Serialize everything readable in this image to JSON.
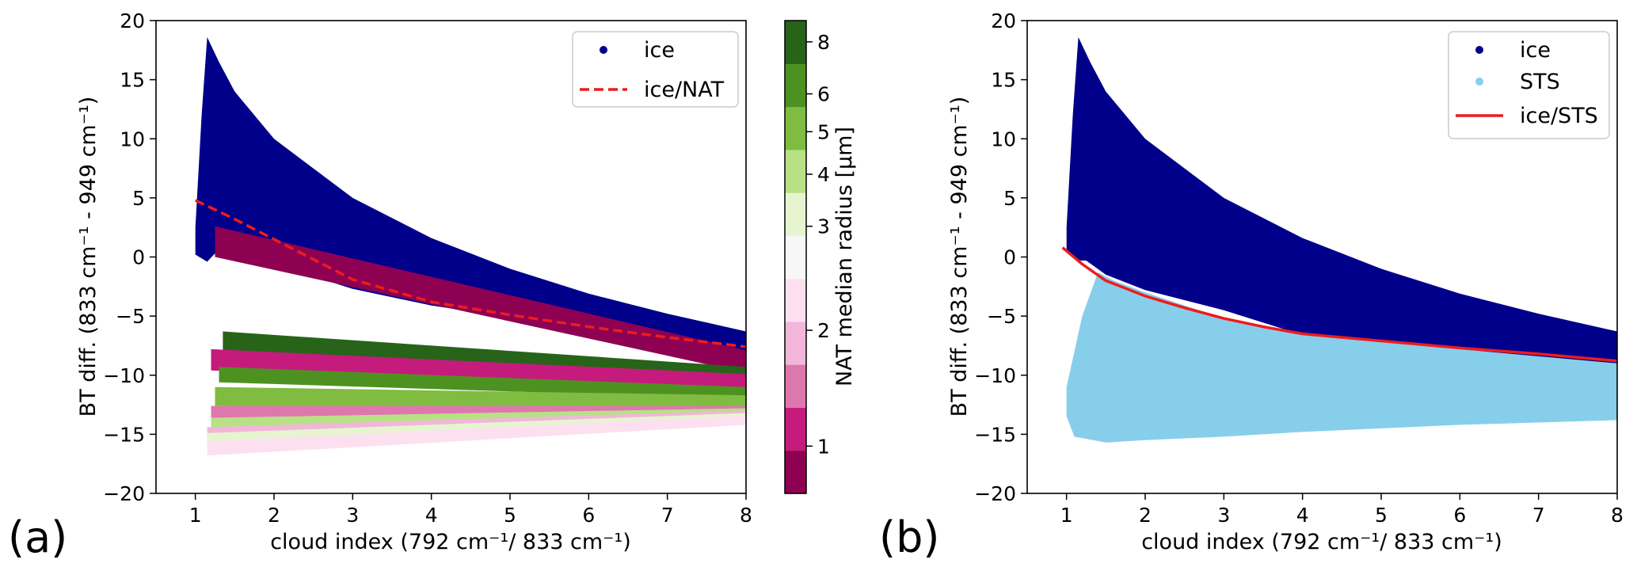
{
  "chart_data": [
    {
      "type": "scatter",
      "panel_label": "(a)",
      "xlabel": "cloud index (792 cm⁻¹/ 833 cm⁻¹)",
      "ylabel": "BT diff. (833 cm⁻¹ - 949 cm⁻¹)",
      "xlim": [
        0.5,
        8
      ],
      "ylim": [
        -20,
        20
      ],
      "xticks": [
        1,
        2,
        3,
        4,
        5,
        6,
        7,
        8
      ],
      "yticks": [
        -20,
        -15,
        -10,
        -5,
        0,
        5,
        10,
        15,
        20
      ],
      "grid": false,
      "legend_position": "top-right",
      "series": [
        {
          "name": "ice",
          "kind": "scatter",
          "color": "#00008b",
          "upper": [
            [
              1.0,
              2.5
            ],
            [
              1.08,
              12.0
            ],
            [
              1.15,
              18.6
            ],
            [
              1.3,
              16.5
            ],
            [
              1.5,
              14.0
            ],
            [
              2.0,
              10.0
            ],
            [
              3.0,
              5.0
            ],
            [
              4.0,
              1.6
            ],
            [
              5.0,
              -1.0
            ],
            [
              6.0,
              -3.1
            ],
            [
              7.0,
              -4.8
            ],
            [
              8.0,
              -6.3
            ]
          ],
          "lower": [
            [
              8.0,
              -8.0
            ],
            [
              7.0,
              -7.0
            ],
            [
              6.0,
              -6.1
            ],
            [
              5.0,
              -5.1
            ],
            [
              4.0,
              -4.1
            ],
            [
              3.0,
              -2.7
            ],
            [
              2.0,
              -0.6
            ],
            [
              1.5,
              0.5
            ],
            [
              1.25,
              0.3
            ],
            [
              1.15,
              -0.4
            ],
            [
              1.0,
              0.2
            ]
          ]
        },
        {
          "name": "ice/NAT",
          "kind": "line",
          "style": "dashed",
          "color": "#ee1c1c",
          "x": [
            1.0,
            1.5,
            2.0,
            2.5,
            3.0,
            4.0,
            5.0,
            6.0,
            7.0,
            8.0
          ],
          "y": [
            4.8,
            3.2,
            1.5,
            -0.2,
            -1.9,
            -3.8,
            -4.9,
            -5.9,
            -6.8,
            -7.6
          ]
        },
        {
          "name": "",
          "kind": "nat-bands",
          "bands": [
            {
              "radius": 0.6,
              "color": "#8e0152",
              "x0": 1.25,
              "x1": 8.0,
              "top0": 2.6,
              "bot0": 0.0,
              "top1": -7.9,
              "bot1": -9.8
            },
            {
              "radius": 8.0,
              "color": "#276419",
              "x0": 1.35,
              "x1": 8.0,
              "top0": -6.3,
              "bot0": -8.0,
              "top1": -9.3,
              "bot1": -10.9
            },
            {
              "radius": 1.0,
              "color": "#c51b7d",
              "x0": 1.2,
              "x1": 8.0,
              "top0": -7.8,
              "bot0": -9.6,
              "top1": -9.9,
              "bot1": -11.4
            },
            {
              "radius": 6.0,
              "color": "#4d9221",
              "x0": 1.3,
              "x1": 8.0,
              "top0": -9.3,
              "bot0": -10.6,
              "top1": -11.0,
              "bot1": -12.0
            },
            {
              "radius": 5.0,
              "color": "#7fbc41",
              "x0": 1.25,
              "x1": 8.0,
              "top0": -11.0,
              "bot0": -12.6,
              "top1": -11.7,
              "bot1": -12.9
            },
            {
              "radius": 1.5,
              "color": "#de77ae",
              "x0": 1.2,
              "x1": 8.0,
              "top0": -12.6,
              "bot0": -14.2,
              "top1": -12.6,
              "bot1": -13.4
            },
            {
              "radius": 4.0,
              "color": "#b8e186",
              "x0": 1.2,
              "x1": 8.0,
              "top0": -13.6,
              "bot0": -14.8,
              "top1": -12.8,
              "bot1": -13.6
            },
            {
              "radius": 2.0,
              "color": "#f1b6da",
              "x0": 1.15,
              "x1": 8.0,
              "top0": -14.4,
              "bot0": -15.5,
              "top1": -13.0,
              "bot1": -13.8
            },
            {
              "radius": 3.5,
              "color": "#e6f5d0",
              "x0": 1.15,
              "x1": 8.0,
              "top0": -14.9,
              "bot0": -16.0,
              "top1": -13.2,
              "bot1": -14.0
            },
            {
              "radius": 2.5,
              "color": "#fde0ef",
              "x0": 1.15,
              "x1": 8.0,
              "top0": -15.6,
              "bot0": -16.8,
              "top1": -13.4,
              "bot1": -14.2
            }
          ]
        }
      ],
      "colorbar": {
        "label": "NAT median radius [μm]",
        "ticks": [
          {
            "label": "1",
            "frac": 0.1
          },
          {
            "label": "2",
            "frac": 0.345
          },
          {
            "label": "3",
            "frac": 0.565
          },
          {
            "label": "4",
            "frac": 0.675
          },
          {
            "label": "5",
            "frac": 0.765
          },
          {
            "label": "6",
            "frac": 0.845
          },
          {
            "label": "8",
            "frac": 0.955
          }
        ],
        "colors": [
          "#8e0152",
          "#c51b7d",
          "#de77ae",
          "#f1b6da",
          "#fde0ef",
          "#f7f7f7",
          "#e6f5d0",
          "#b8e186",
          "#7fbc41",
          "#4d9221",
          "#276419"
        ]
      }
    },
    {
      "type": "scatter",
      "panel_label": "(b)",
      "xlabel": "cloud index (792 cm⁻¹/ 833 cm⁻¹)",
      "ylabel": "BT diff. (833 cm⁻¹ - 949 cm⁻¹)",
      "xlim": [
        0.5,
        8
      ],
      "ylim": [
        -20,
        20
      ],
      "xticks": [
        1,
        2,
        3,
        4,
        5,
        6,
        7,
        8
      ],
      "yticks": [
        -20,
        -15,
        -10,
        -5,
        0,
        5,
        10,
        15,
        20
      ],
      "grid": false,
      "legend_position": "top-right",
      "series": [
        {
          "name": "ice",
          "kind": "scatter",
          "color": "#00008b",
          "upper": [
            [
              1.0,
              2.5
            ],
            [
              1.08,
              12.0
            ],
            [
              1.15,
              18.6
            ],
            [
              1.3,
              16.5
            ],
            [
              1.5,
              14.0
            ],
            [
              2.0,
              10.0
            ],
            [
              3.0,
              5.0
            ],
            [
              4.0,
              1.6
            ],
            [
              5.0,
              -1.0
            ],
            [
              6.0,
              -3.1
            ],
            [
              7.0,
              -4.8
            ],
            [
              8.0,
              -6.3
            ]
          ],
          "lower": [
            [
              8.0,
              -9.0
            ],
            [
              7.0,
              -8.5
            ],
            [
              6.0,
              -7.9
            ],
            [
              5.0,
              -7.1
            ],
            [
              4.0,
              -6.6
            ],
            [
              3.0,
              -4.5
            ],
            [
              2.0,
              -2.8
            ],
            [
              1.5,
              -1.5
            ],
            [
              1.25,
              -0.3
            ],
            [
              1.15,
              -0.3
            ],
            [
              1.0,
              0.5
            ]
          ]
        },
        {
          "name": "STS",
          "kind": "scatter",
          "color": "#87ceeb",
          "upper": [
            [
              1.0,
              -11.0
            ],
            [
              1.2,
              -5.0
            ],
            [
              1.4,
              -1.3
            ],
            [
              1.6,
              -2.0
            ],
            [
              2.0,
              -3.0
            ],
            [
              3.0,
              -5.2
            ],
            [
              4.0,
              -6.4
            ],
            [
              5.0,
              -7.2
            ],
            [
              6.0,
              -7.8
            ],
            [
              7.0,
              -8.4
            ],
            [
              8.0,
              -9.0
            ]
          ],
          "lower": [
            [
              8.0,
              -13.8
            ],
            [
              7.0,
              -14.0
            ],
            [
              6.0,
              -14.2
            ],
            [
              5.0,
              -14.5
            ],
            [
              4.0,
              -14.8
            ],
            [
              3.0,
              -15.2
            ],
            [
              2.0,
              -15.5
            ],
            [
              1.5,
              -15.7
            ],
            [
              1.1,
              -15.2
            ],
            [
              1.0,
              -13.5
            ]
          ]
        },
        {
          "name": "ice/STS",
          "kind": "line",
          "style": "solid",
          "color": "#ee1c1c",
          "x": [
            0.95,
            1.2,
            1.5,
            2.0,
            2.5,
            3.0,
            3.5,
            4.0,
            5.0,
            6.0,
            7.0,
            8.0
          ],
          "y": [
            0.8,
            -0.6,
            -2.0,
            -3.3,
            -4.3,
            -5.2,
            -5.9,
            -6.5,
            -7.1,
            -7.7,
            -8.2,
            -8.8
          ]
        }
      ]
    }
  ]
}
